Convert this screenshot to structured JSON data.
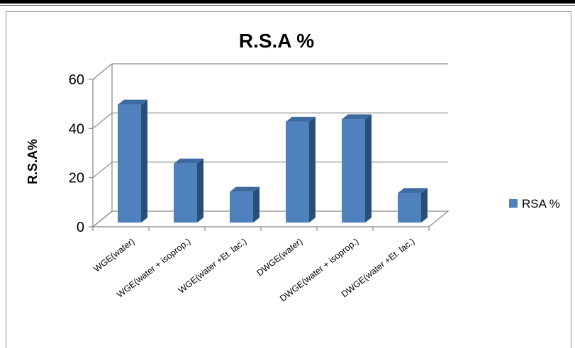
{
  "chart_data": {
    "type": "bar",
    "title": "R.S.A %",
    "ylabel": "R.S.A%",
    "xlabel": "",
    "categories": [
      "WGE(water)",
      "WGE(water + isoprop.)",
      "WGE(water +Et. lac.)",
      "DWGE(water)",
      "DWGE(water + isoprop.)",
      "DWGE(water +Et. lac.)"
    ],
    "series": [
      {
        "name": "RSA %",
        "values": [
          48,
          24,
          12.5,
          41,
          42,
          12
        ]
      }
    ],
    "ylim": [
      0,
      60
    ],
    "yticks": [
      0,
      20,
      40,
      60
    ],
    "grid": true,
    "legend_position": "right",
    "colors": {
      "bar_front": "#4f81bd",
      "bar_side": "#2c4d75",
      "bar_top": "#3d6aa0",
      "grid": "#868686"
    }
  }
}
